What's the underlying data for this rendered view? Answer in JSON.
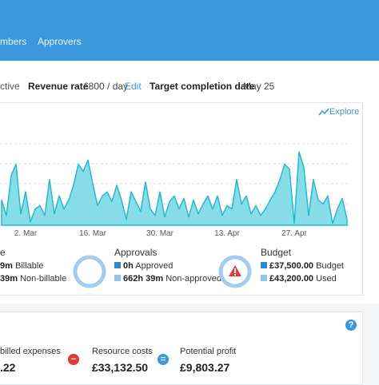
{
  "nav": {
    "tabs": [
      "mbers",
      "Approvers"
    ]
  },
  "details": {
    "status": "ctive",
    "revenue_rate": {
      "label": "Revenue rate",
      "value": "£800 / day",
      "action": "Edit"
    },
    "target": {
      "label": "Target completion date",
      "value": "May 25"
    }
  },
  "explore": "Explore",
  "chart_data": {
    "type": "area",
    "color": "#27b8d0",
    "fill": "#86dde8",
    "categories": [
      null,
      null,
      null,
      null,
      null,
      "2. Mar",
      null,
      null,
      null,
      null,
      null,
      null,
      null,
      null,
      null,
      null,
      null,
      null,
      null,
      "16. Mar",
      null,
      null,
      null,
      null,
      null,
      null,
      null,
      null,
      null,
      null,
      null,
      null,
      null,
      "30. Mar",
      null,
      null,
      null,
      null,
      null,
      null,
      null,
      null,
      null,
      null,
      null,
      null,
      null,
      "13. Apr",
      null,
      null,
      null,
      null,
      null,
      null,
      null,
      null,
      null,
      null,
      null,
      null,
      null,
      "27. Apr",
      null,
      null,
      null,
      null,
      null,
      null,
      null,
      null,
      null,
      null,
      null
    ],
    "values": [
      31,
      12,
      61,
      75,
      14,
      41,
      4,
      20,
      24,
      12,
      56,
      14,
      36,
      20,
      31,
      49,
      75,
      66,
      80,
      51,
      24,
      36,
      41,
      29,
      49,
      31,
      7,
      41,
      29,
      17,
      53,
      20,
      12,
      41,
      10,
      29,
      36,
      20,
      33,
      10,
      31,
      14,
      26,
      36,
      20,
      36,
      12,
      24,
      20,
      56,
      26,
      36,
      14,
      24,
      12,
      20,
      31,
      41,
      56,
      75,
      69,
      2,
      90,
      71,
      12,
      56,
      31,
      26,
      36,
      2,
      20,
      33,
      7
    ],
    "ylim": [
      0,
      100
    ]
  },
  "summary": {
    "time": {
      "title": "e",
      "rows": [
        {
          "amount": "9m",
          "label": "Billable"
        },
        {
          "amount": "39m",
          "label": "Non-billable"
        }
      ]
    },
    "approvals": {
      "title": "Approvals",
      "rows": [
        {
          "amount": "0h",
          "label": "Approved"
        },
        {
          "amount": "662h 39m",
          "label": "Non-approved"
        }
      ]
    },
    "budget": {
      "title": "Budget",
      "rows": [
        {
          "amount": "£37,500.00",
          "label": "Budget"
        },
        {
          "amount": "£43,200.00",
          "label": "Used"
        }
      ]
    }
  },
  "profit": {
    "help": "?",
    "items": [
      {
        "label": "billed expenses",
        "value": ".22"
      },
      {
        "label": "Resource costs",
        "value": "£33,132.50"
      },
      {
        "label": "Potential profit",
        "value": "£9,803.27"
      }
    ],
    "operators": [
      "−",
      "="
    ]
  }
}
